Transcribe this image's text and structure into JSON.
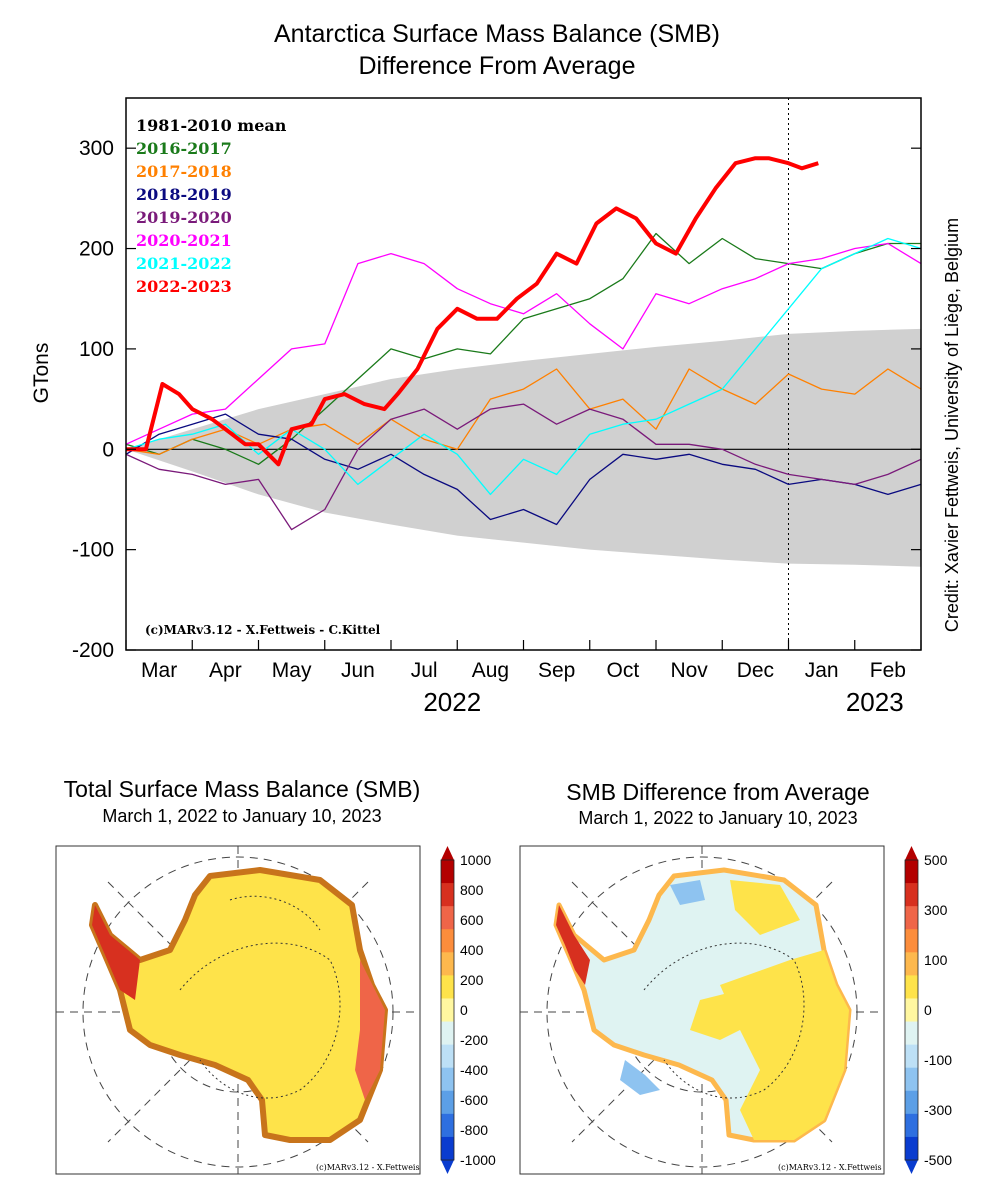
{
  "chart_data": [
    {
      "type": "line",
      "title": "Antarctica Surface Mass Balance (SMB)",
      "subtitle": "Difference From Average",
      "ylabel": "GTons",
      "xlabel": "",
      "ylim": [
        -200,
        350
      ],
      "yticks": [
        -200,
        -100,
        0,
        100,
        200,
        300
      ],
      "xlim": [
        0,
        12
      ],
      "xticks": [
        {
          "label": "Mar",
          "x": 0.5
        },
        {
          "label": "Apr",
          "x": 1.5
        },
        {
          "label": "May",
          "x": 2.5
        },
        {
          "label": "Jun",
          "x": 3.5
        },
        {
          "label": "Jul",
          "x": 4.5
        },
        {
          "label": "Aug",
          "x": 5.5
        },
        {
          "label": "Sep",
          "x": 6.5
        },
        {
          "label": "Oct",
          "x": 7.5
        },
        {
          "label": "Nov",
          "x": 8.5
        },
        {
          "label": "Dec",
          "x": 9.5
        },
        {
          "label": "Jan",
          "x": 10.5
        },
        {
          "label": "Feb",
          "x": 11.5
        }
      ],
      "year_labels": [
        {
          "label": "2022",
          "x": 5
        },
        {
          "label": "2023",
          "x": 11
        }
      ],
      "vline_x": 10.0,
      "credit": "(c)MARv3.12 - X.Fettweis - C.Kittel",
      "side_credit": "Credit: Xavier Fettweis, University of Liège, Belgium",
      "envelope": {
        "x": [
          0,
          1,
          2,
          3,
          4,
          5,
          6,
          7,
          8,
          9,
          10,
          11,
          12
        ],
        "upper": [
          0,
          20,
          40,
          55,
          70,
          80,
          88,
          95,
          102,
          108,
          115,
          118,
          120
        ],
        "lower": [
          0,
          -22,
          -45,
          -63,
          -75,
          -86,
          -93,
          -100,
          -105,
          -110,
          -114,
          -115,
          -117
        ]
      },
      "series": [
        {
          "name": "1981-2010 mean",
          "color": "#000000",
          "width": 1.2,
          "x": [
            0,
            12
          ],
          "y": [
            0,
            0
          ]
        },
        {
          "name": "2016-2017",
          "color": "#1a7a1a",
          "width": 1.3,
          "x": [
            0,
            0.5,
            1,
            1.5,
            2,
            2.5,
            3,
            3.5,
            4,
            4.5,
            5,
            5.5,
            6,
            6.5,
            7,
            7.5,
            8,
            8.5,
            9,
            9.5,
            10,
            10.5,
            11,
            11.5,
            12
          ],
          "y": [
            5,
            -5,
            10,
            0,
            -15,
            10,
            40,
            70,
            100,
            90,
            100,
            95,
            130,
            140,
            150,
            170,
            215,
            185,
            210,
            190,
            185,
            180,
            195,
            205,
            205
          ]
        },
        {
          "name": "2017-2018",
          "color": "#ff8000",
          "width": 1.3,
          "x": [
            0,
            0.5,
            1,
            1.5,
            2,
            2.5,
            3,
            3.5,
            4,
            4.5,
            5,
            5.5,
            6,
            6.5,
            7,
            7.5,
            8,
            8.5,
            9,
            9.5,
            10,
            10.5,
            11,
            11.5,
            12
          ],
          "y": [
            0,
            -5,
            10,
            20,
            5,
            20,
            25,
            5,
            30,
            10,
            0,
            50,
            60,
            80,
            40,
            50,
            20,
            80,
            60,
            45,
            75,
            60,
            55,
            80,
            60
          ]
        },
        {
          "name": "2018-2019",
          "color": "#0a0a80",
          "width": 1.3,
          "x": [
            0,
            0.5,
            1,
            1.5,
            2,
            2.5,
            3,
            3.5,
            4,
            4.5,
            5,
            5.5,
            6,
            6.5,
            7,
            7.5,
            8,
            8.5,
            9,
            9.5,
            10,
            10.5,
            11,
            11.5,
            12
          ],
          "y": [
            -5,
            15,
            25,
            35,
            15,
            10,
            -10,
            -20,
            -5,
            -25,
            -40,
            -70,
            -60,
            -75,
            -30,
            -5,
            -10,
            -5,
            -15,
            -20,
            -35,
            -30,
            -35,
            -45,
            -35
          ]
        },
        {
          "name": "2019-2020",
          "color": "#7a1a7a",
          "width": 1.3,
          "x": [
            0,
            0.5,
            1,
            1.5,
            2,
            2.5,
            3,
            3.5,
            4,
            4.5,
            5,
            5.5,
            6,
            6.5,
            7,
            7.5,
            8,
            8.5,
            9,
            9.5,
            10,
            10.5,
            11,
            11.5,
            12
          ],
          "y": [
            -5,
            -20,
            -25,
            -35,
            -30,
            -80,
            -60,
            0,
            30,
            40,
            20,
            40,
            45,
            25,
            40,
            30,
            5,
            5,
            0,
            -15,
            -25,
            -30,
            -35,
            -25,
            -10
          ]
        },
        {
          "name": "2020-2021",
          "color": "#ff00ff",
          "width": 1.3,
          "x": [
            0,
            0.5,
            1,
            1.5,
            2,
            2.5,
            3,
            3.5,
            4,
            4.5,
            5,
            5.5,
            6,
            6.5,
            7,
            7.5,
            8,
            8.5,
            9,
            9.5,
            10,
            10.5,
            11,
            11.5,
            12
          ],
          "y": [
            5,
            20,
            35,
            40,
            70,
            100,
            105,
            185,
            195,
            185,
            160,
            145,
            135,
            155,
            125,
            100,
            155,
            145,
            160,
            170,
            185,
            190,
            200,
            205,
            185
          ]
        },
        {
          "name": "2021-2022",
          "color": "#00ffff",
          "width": 1.3,
          "x": [
            0,
            0.5,
            1,
            1.5,
            2,
            2.5,
            3,
            3.5,
            4,
            4.5,
            5,
            5.5,
            6,
            6.5,
            7,
            7.5,
            8,
            8.5,
            9,
            9.5,
            10,
            10.5,
            11,
            11.5,
            12
          ],
          "y": [
            0,
            10,
            15,
            25,
            -5,
            20,
            0,
            -35,
            -10,
            15,
            -5,
            -45,
            -10,
            -25,
            15,
            25,
            30,
            45,
            60,
            100,
            140,
            180,
            195,
            210,
            200
          ]
        },
        {
          "name": "2022-2023",
          "color": "#ff0000",
          "width": 4,
          "x": [
            0,
            0.3,
            0.55,
            0.8,
            1.0,
            1.3,
            1.5,
            1.8,
            2.0,
            2.3,
            2.5,
            2.8,
            3.0,
            3.3,
            3.6,
            3.9,
            4.1,
            4.4,
            4.7,
            5.0,
            5.3,
            5.6,
            5.9,
            6.2,
            6.5,
            6.8,
            7.1,
            7.4,
            7.7,
            8.0,
            8.3,
            8.6,
            8.9,
            9.2,
            9.5,
            9.7,
            10.0,
            10.2,
            10.45
          ],
          "y": [
            0,
            0,
            65,
            55,
            40,
            30,
            20,
            5,
            5,
            -15,
            20,
            25,
            50,
            55,
            45,
            40,
            55,
            80,
            120,
            140,
            130,
            130,
            150,
            165,
            195,
            185,
            225,
            240,
            230,
            205,
            195,
            230,
            260,
            285,
            290,
            290,
            285,
            280,
            285
          ]
        }
      ]
    },
    {
      "type": "heatmap",
      "title": "Total Surface Mass Balance (SMB)",
      "subtitle": "March 1, 2022 to January 10, 2023",
      "colorbar_ticks": [
        "1000",
        "800",
        "600",
        "400",
        "200",
        "0",
        "-200",
        "-400",
        "-600",
        "-800",
        "-1000"
      ],
      "colorbar_colors": [
        "#b30000",
        "#d7301f",
        "#ef6548",
        "#fc8d3c",
        "#fdb84d",
        "#fee34a",
        "#fff7a0",
        "#dff3f2",
        "#bde0f6",
        "#8ec3f0",
        "#5c9fe6",
        "#2e6fe0",
        "#0a3ccf"
      ],
      "credit": "(c)MARv3.12 - X.Fettweis"
    },
    {
      "type": "heatmap",
      "title": "SMB Difference from Average",
      "subtitle": "March 1, 2022 to January 10, 2023",
      "colorbar_ticks": [
        "500",
        "300",
        "100",
        "0",
        "-100",
        "-300",
        "-500"
      ],
      "colorbar_colors": [
        "#b30000",
        "#d7301f",
        "#ef6548",
        "#fc8d3c",
        "#fdb84d",
        "#fee34a",
        "#fff7a0",
        "#dff3f2",
        "#bde0f6",
        "#8ec3f0",
        "#5c9fe6",
        "#2e6fe0",
        "#0a3ccf"
      ],
      "credit": "(c)MARv3.12 - X.Fettweis"
    }
  ],
  "colors": {
    "envelope": "#d0d0d0",
    "map_frame": "#333333"
  }
}
